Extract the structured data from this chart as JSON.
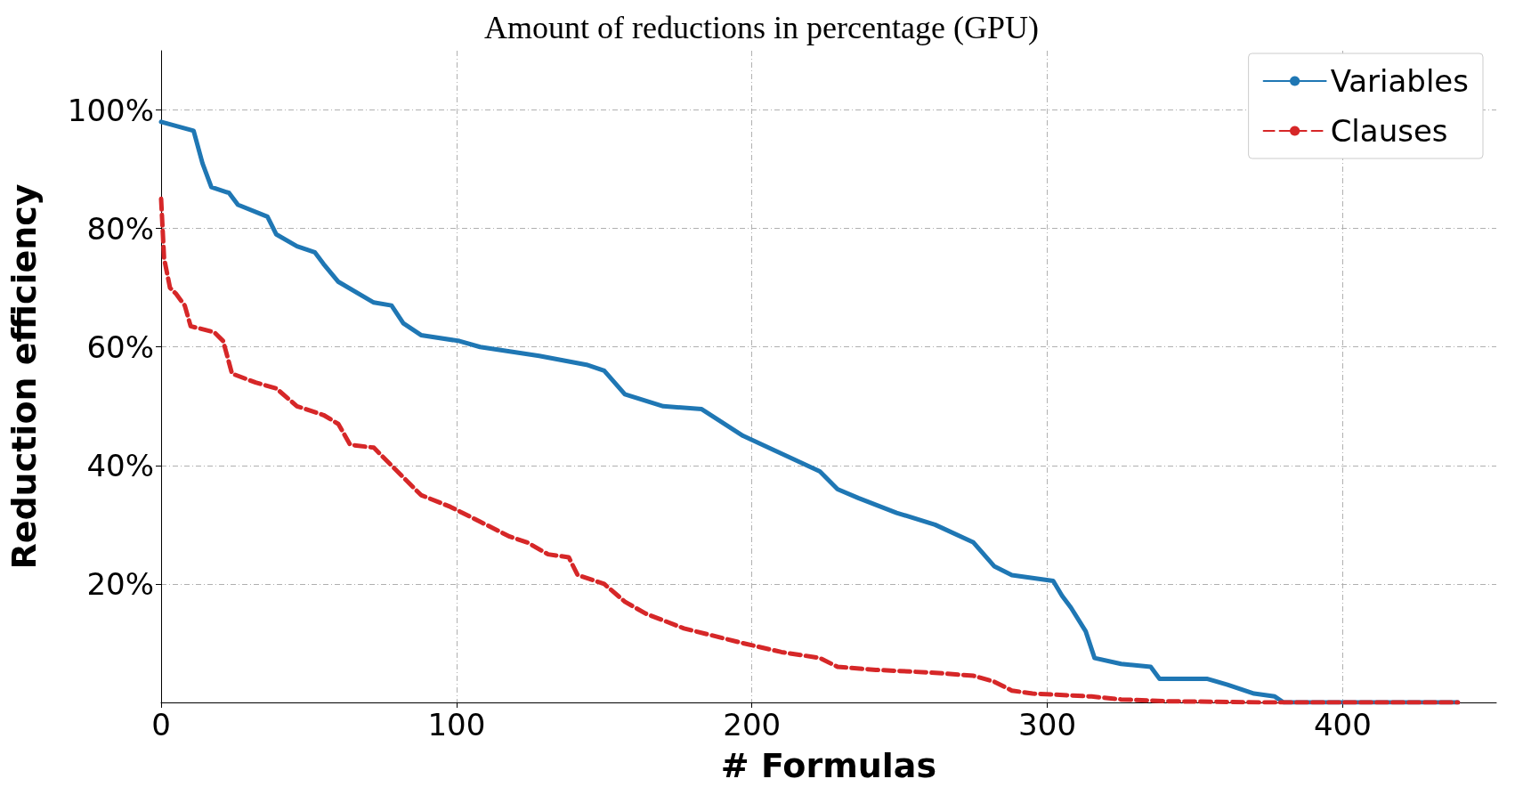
{
  "chart_data": {
    "type": "line",
    "title": "Amount of reductions in percentage (GPU)",
    "xlabel": "# Formulas",
    "ylabel": "Reduction efficiency",
    "xlim": [
      0,
      452
    ],
    "xticks": [
      0,
      100,
      200,
      300,
      400
    ],
    "ylim": [
      0,
      110
    ],
    "yticks": [
      {
        "value": 20,
        "label": "20%"
      },
      {
        "value": 40,
        "label": "40%"
      },
      {
        "value": 60,
        "label": "60%"
      },
      {
        "value": 80,
        "label": "80%"
      },
      {
        "value": 100,
        "label": "100%"
      }
    ],
    "grid": true,
    "legend": "top right",
    "marker": "none",
    "series": [
      {
        "name": "Variables",
        "color": "#1f77b4",
        "line_style": "solid",
        "x": [
          0,
          11,
          14,
          17,
          23,
          26,
          36,
          39,
          46,
          52,
          55,
          60,
          72,
          78,
          82,
          88,
          101,
          108,
          128,
          144,
          150,
          157,
          170,
          183,
          197,
          210,
          223,
          229,
          236,
          249,
          262,
          275,
          282,
          288,
          302,
          305,
          308,
          313,
          316,
          325,
          335,
          338,
          354,
          361,
          370,
          377,
          380,
          439
        ],
        "values": [
          98,
          96.5,
          91,
          87,
          86,
          84,
          82,
          79,
          77,
          76,
          74,
          71,
          67.5,
          67,
          64,
          62,
          61,
          60,
          58.5,
          57,
          56,
          52,
          50,
          49.5,
          45,
          42,
          39,
          36,
          34.5,
          32,
          30,
          27,
          23,
          21.5,
          20.5,
          18,
          16,
          12,
          7.5,
          6.5,
          6,
          4,
          4,
          3,
          1.5,
          1,
          0,
          0
        ]
      },
      {
        "name": "Clauses",
        "color": "#d62728",
        "line_style": "dashed",
        "x": [
          0,
          1,
          3,
          5,
          8,
          10,
          18,
          21,
          24,
          32,
          39,
          46,
          55,
          60,
          64,
          72,
          78,
          82,
          88,
          98,
          108,
          118,
          124,
          131,
          138,
          141,
          150,
          157,
          164,
          177,
          197,
          210,
          223,
          229,
          242,
          262,
          275,
          282,
          288,
          295,
          315,
          325,
          341,
          374,
          439
        ],
        "values": [
          85,
          75,
          70,
          69,
          67,
          63.5,
          62.5,
          61,
          55.5,
          54,
          53,
          50,
          48.5,
          47,
          43.5,
          43,
          40,
          38,
          35,
          33,
          30.5,
          28,
          27,
          25,
          24.5,
          21.5,
          20,
          17,
          15,
          12.5,
          10,
          8.5,
          7.5,
          6,
          5.5,
          5,
          4.5,
          3.5,
          2,
          1.5,
          1,
          0.5,
          0.2,
          0,
          0
        ]
      }
    ]
  }
}
